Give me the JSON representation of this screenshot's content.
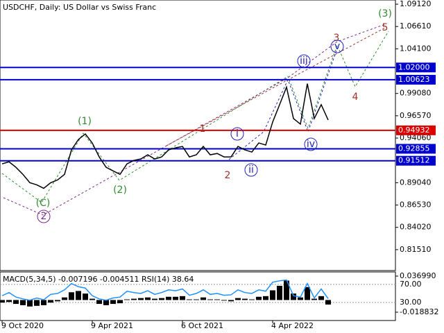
{
  "chart_data": [
    {
      "type": "line",
      "title": "USDCHF, Daily:  US Dollar vs Swiss Franc",
      "categories": [
        "9 Oct 2020",
        null,
        null,
        null,
        null,
        null,
        null,
        null,
        null,
        null,
        null,
        null,
        null,
        "9 Apr 2021",
        null,
        null,
        null,
        null,
        null,
        null,
        null,
        null,
        null,
        null,
        null,
        null,
        "6 Oct 2021",
        null,
        null,
        null,
        null,
        null,
        null,
        null,
        null,
        null,
        null,
        null,
        null,
        "4 Apr 2022",
        null,
        null,
        null,
        null,
        null,
        null,
        null,
        null
      ],
      "values": [
        0.9116,
        0.9139,
        0.9077,
        0.8998,
        0.8904,
        0.888,
        0.8841,
        0.8904,
        0.8935,
        0.8998,
        0.9273,
        0.939,
        0.9453,
        0.9351,
        0.9194,
        0.9077,
        0.9037,
        0.8998,
        0.9116,
        0.9155,
        0.9171,
        0.9218,
        0.9171,
        0.9194,
        0.9273,
        0.9296,
        0.9312,
        0.9194,
        0.9218,
        0.9312,
        0.9218,
        0.9233,
        0.9194,
        0.9194,
        0.9312,
        0.9273,
        0.9249,
        0.9351,
        0.9328,
        0.9586,
        0.9782,
        0.9979,
        0.9626,
        0.9563,
        1.0018,
        0.9626,
        0.9782,
        0.961
      ],
      "color": "#000000",
      "ylim": [
        0.7916,
        1.0959
      ],
      "yticks": [
        {
          "value": 1.0912,
          "label": "1.09120"
        },
        {
          "value": 1.0661,
          "label": "1.06610"
        },
        {
          "value": 1.041,
          "label": "1.04100"
        },
        {
          "value": 0.9908,
          "label": "0.99080"
        },
        {
          "value": 0.9657,
          "label": "0.96570"
        },
        {
          "value": 0.9406,
          "label": "0.94060"
        },
        {
          "value": 0.8904,
          "label": "0.89040"
        },
        {
          "value": 0.8653,
          "label": "0.86530"
        },
        {
          "value": 0.8402,
          "label": "0.84020"
        },
        {
          "value": 0.8151,
          "label": "0.81510"
        }
      ],
      "levels": [
        {
          "value": 1.02,
          "label": "1.02000",
          "color": "#0000cc"
        },
        {
          "value": 1.00623,
          "label": "1.00623",
          "color": "#0000cc"
        },
        {
          "value": 0.94932,
          "label": "0.94932",
          "color": "#dd0000"
        },
        {
          "value": 0.92855,
          "label": "0.92855",
          "color": "#0000cc"
        },
        {
          "value": 0.91512,
          "label": "0.91512",
          "color": "#0000cc"
        }
      ],
      "annotations": [
        {
          "text": "(3)",
          "color": "#2e8b2e"
        },
        {
          "text": "3",
          "color": "#a0302a"
        },
        {
          "text": "5",
          "color": "#a0302a"
        },
        {
          "text": "v",
          "color": "#2020c0"
        },
        {
          "text": "iii",
          "color": "#2020c0"
        },
        {
          "text": "1",
          "color": "#a0302a"
        },
        {
          "text": "i",
          "color": "#2020c0"
        },
        {
          "text": "(1)",
          "color": "#2e8b2e"
        },
        {
          "text": "4",
          "color": "#a0302a"
        },
        {
          "text": "iv",
          "color": "#2020c0"
        },
        {
          "text": "2",
          "color": "#a0302a"
        },
        {
          "text": "ii",
          "color": "#2020c0"
        },
        {
          "text": "(2)",
          "color": "#2e8b2e"
        },
        {
          "text": "(C)",
          "color": "#2e8b2e"
        },
        {
          "text": "2",
          "color": "#7a2a8a"
        }
      ]
    },
    {
      "type": "combo",
      "title": "MACD(5,34,5) -0.007196 -0.004511 RSI(14) 38.64",
      "series": [
        {
          "type": "bar",
          "color": "#000000",
          "values": [
            -0.004,
            -0.003,
            -0.006,
            -0.008,
            -0.01,
            -0.009,
            -0.008,
            -0.004,
            -0.002,
            0.004,
            0.012,
            0.014,
            0.01,
            0.002,
            -0.006,
            -0.008,
            -0.006,
            -0.005,
            0.001,
            0.002,
            0.003,
            0.004,
            0.002,
            0.003,
            0.005,
            0.005,
            0.006,
            0.001,
            0.001,
            0.004,
            0.001,
            0.001,
            -0.001,
            -0.002,
            0.003,
            0.002,
            0.001,
            0.005,
            0.006,
            0.015,
            0.022,
            0.03,
            0.01,
            0.004,
            0.02,
            0.002,
            0.006,
            -0.007
          ]
        },
        {
          "type": "line",
          "axis": "y2",
          "color": "#1e90ff",
          "values": [
            45,
            52,
            42,
            38,
            35,
            40,
            36,
            48,
            50,
            58,
            72,
            65,
            62,
            45,
            38,
            35,
            40,
            42,
            55,
            52,
            50,
            56,
            48,
            52,
            58,
            56,
            60,
            46,
            50,
            58,
            48,
            50,
            46,
            47,
            58,
            52,
            50,
            58,
            55,
            75,
            78,
            80,
            45,
            42,
            72,
            40,
            60,
            38.64
          ]
        }
      ],
      "ylim": [
        -0.03171,
        0.04343
      ],
      "yticks": [
        {
          "value": 0.03699,
          "label": "0.036990"
        },
        {
          "value": -0.018832,
          "label": "-0.018832"
        }
      ],
      "y2lim": [
        -10,
        97.7
      ],
      "y2ticks": [
        {
          "value": 70,
          "label": "70.00"
        },
        {
          "value": 30,
          "label": "30.00"
        }
      ]
    }
  ]
}
